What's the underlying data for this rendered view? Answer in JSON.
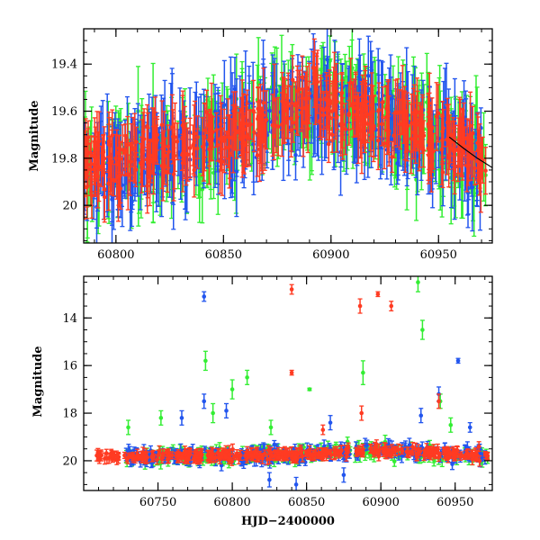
{
  "chart_data": [
    {
      "type": "scatter",
      "xlabel": "",
      "ylabel": "Magnitude",
      "xlim": [
        60785,
        60975
      ],
      "ylim": [
        20.16,
        19.25
      ],
      "y_inverted": true,
      "x_ticks": [
        60800,
        60850,
        60900,
        60950
      ],
      "x_tick_labels": [
        "60800",
        "60850",
        "60900",
        "60950"
      ],
      "y_ticks": [
        19.4,
        19.6,
        19.8,
        20
      ],
      "y_tick_labels": [
        "19.4",
        "19.6",
        "19.8",
        "20"
      ],
      "series_colors": {
        "green": "#33ee33",
        "blue": "#2255ee",
        "red": "#ff3b22",
        "model": "#000000"
      },
      "series": [
        {
          "name": "green",
          "color": "#33ee33",
          "x_range": [
            60785,
            60972
          ],
          "trend": [
            [
              60785,
              19.86
            ],
            [
              60845,
              19.72
            ],
            [
              60895,
              19.55
            ],
            [
              60972,
              19.8
            ]
          ],
          "scatter": 0.16,
          "err": 0.14,
          "n_points": 320
        },
        {
          "name": "blue",
          "color": "#2255ee",
          "x_range": [
            60785,
            60972
          ],
          "trend": [
            [
              60785,
              19.86
            ],
            [
              60845,
              19.72
            ],
            [
              60895,
              19.55
            ],
            [
              60972,
              19.8
            ]
          ],
          "scatter": 0.16,
          "err": 0.14,
          "n_points": 320
        },
        {
          "name": "red",
          "color": "#ff3b22",
          "x_range": [
            60785,
            60972
          ],
          "trend": [
            [
              60785,
              19.86
            ],
            [
              60845,
              19.72
            ],
            [
              60895,
              19.55
            ],
            [
              60972,
              19.8
            ]
          ],
          "scatter": 0.12,
          "err": 0.1,
          "n_points": 420
        }
      ],
      "model_curve": [
        [
          60955,
          19.71
        ],
        [
          60962,
          19.76
        ],
        [
          60968,
          19.8
        ],
        [
          60975,
          19.84
        ]
      ]
    },
    {
      "type": "scatter",
      "xlabel": "HJD−2400000",
      "ylabel": "Magnitude",
      "xlim": [
        60700,
        60975
      ],
      "ylim": [
        21.25,
        12.25
      ],
      "y_inverted": true,
      "x_ticks": [
        60750,
        60800,
        60850,
        60900,
        60950
      ],
      "x_tick_labels": [
        "60750",
        "60800",
        "60850",
        "60900",
        "60950"
      ],
      "y_ticks": [
        14,
        16,
        18,
        20
      ],
      "y_tick_labels": [
        "14",
        "16",
        "18",
        "20"
      ],
      "series": [
        {
          "name": "green",
          "color": "#33ee33",
          "x_range": [
            60728,
            60972
          ],
          "trend": [
            [
              60728,
              19.85
            ],
            [
              60850,
              19.75
            ],
            [
              60895,
              19.55
            ],
            [
              60972,
              19.8
            ]
          ],
          "scatter": 0.28,
          "err": 0.2,
          "n_points": 240,
          "outliers": [
            [
              60730,
              18.6,
              0.3
            ],
            [
              60752,
              18.2,
              0.3
            ],
            [
              60782,
              15.8,
              0.4
            ],
            [
              60787,
              18.0,
              0.4
            ],
            [
              60800,
              17.0,
              0.4
            ],
            [
              60810,
              16.5,
              0.3
            ],
            [
              60826,
              18.6,
              0.3
            ],
            [
              60852,
              17.0,
              0.05
            ],
            [
              60888,
              16.3,
              0.5
            ],
            [
              60925,
              12.5,
              0.4
            ],
            [
              60928,
              14.5,
              0.4
            ],
            [
              60940,
              17.5,
              0.3
            ],
            [
              60947,
              18.5,
              0.3
            ]
          ]
        },
        {
          "name": "blue",
          "color": "#2255ee",
          "x_range": [
            60728,
            60972
          ],
          "trend": [
            [
              60728,
              19.85
            ],
            [
              60850,
              19.75
            ],
            [
              60895,
              19.55
            ],
            [
              60972,
              19.8
            ]
          ],
          "scatter": 0.28,
          "err": 0.2,
          "n_points": 240,
          "outliers": [
            [
              60781,
              13.1,
              0.2
            ],
            [
              60781,
              17.5,
              0.3
            ],
            [
              60766,
              18.2,
              0.3
            ],
            [
              60796,
              17.9,
              0.3
            ],
            [
              60825,
              20.8,
              0.3
            ],
            [
              60843,
              21.0,
              0.3
            ],
            [
              60866,
              18.4,
              0.3
            ],
            [
              60875,
              20.6,
              0.3
            ],
            [
              60927,
              18.1,
              0.3
            ],
            [
              60939,
              17.2,
              0.3
            ],
            [
              60952,
              15.8,
              0.1
            ],
            [
              60960,
              18.6,
              0.2
            ]
          ]
        },
        {
          "name": "red",
          "color": "#ff3b22",
          "x_range": [
            60708,
            60972
          ],
          "trend": [
            [
              60708,
              19.85
            ],
            [
              60850,
              19.75
            ],
            [
              60895,
              19.55
            ],
            [
              60972,
              19.8
            ]
          ],
          "scatter": 0.2,
          "err": 0.16,
          "n_points": 380,
          "outliers": [
            [
              60840,
              12.8,
              0.2
            ],
            [
              60840,
              16.3,
              0.1
            ],
            [
              60861,
              18.7,
              0.2
            ],
            [
              60886,
              13.5,
              0.3
            ],
            [
              60887,
              18.0,
              0.3
            ],
            [
              60898,
              13.0,
              0.1
            ],
            [
              60907,
              13.5,
              0.2
            ],
            [
              60939,
              17.5,
              0.3
            ],
            [
              60966,
              19.4,
              0.2
            ]
          ]
        }
      ]
    }
  ]
}
